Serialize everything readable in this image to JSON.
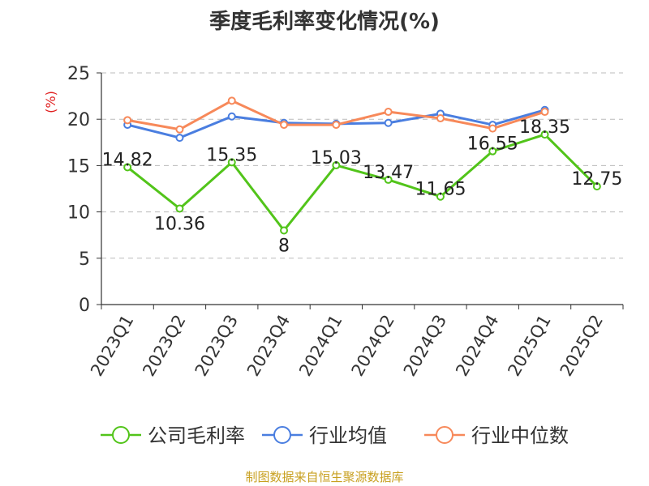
{
  "title": "季度毛利率变化情况(%)",
  "source": "制图数据来自恒生聚源数据库",
  "chart_data": {
    "type": "line",
    "title": "季度毛利率变化情况(%)",
    "ylabel": "(%)",
    "ylim": [
      0,
      25
    ],
    "yticks": [
      0,
      5,
      10,
      15,
      20,
      25
    ],
    "grid": true,
    "legend_position": "bottom",
    "categories": [
      "2023Q1",
      "2023Q2",
      "2023Q3",
      "2023Q4",
      "2024Q1",
      "2024Q2",
      "2024Q3",
      "2024Q4",
      "2025Q1",
      "2025Q2"
    ],
    "series": [
      {
        "name": "公司毛利率",
        "color": "#52c41a",
        "show_labels": true,
        "values": [
          14.82,
          10.36,
          15.35,
          8,
          15.03,
          13.47,
          11.65,
          16.55,
          18.35,
          12.75
        ],
        "labels": [
          "14.82",
          "10.36",
          "15.35",
          "8",
          "15.03",
          "13.47",
          "11.65",
          "16.55",
          "18.35",
          "12.75"
        ]
      },
      {
        "name": "行业均值",
        "color": "#4a7ee0",
        "show_labels": false,
        "values": [
          19.4,
          18.0,
          20.3,
          19.6,
          19.5,
          19.6,
          20.6,
          19.4,
          21.0,
          null
        ]
      },
      {
        "name": "行业中位数",
        "color": "#f7895a",
        "show_labels": false,
        "values": [
          19.9,
          18.9,
          22.0,
          19.4,
          19.4,
          20.8,
          20.1,
          19.0,
          20.8,
          null
        ]
      }
    ]
  }
}
